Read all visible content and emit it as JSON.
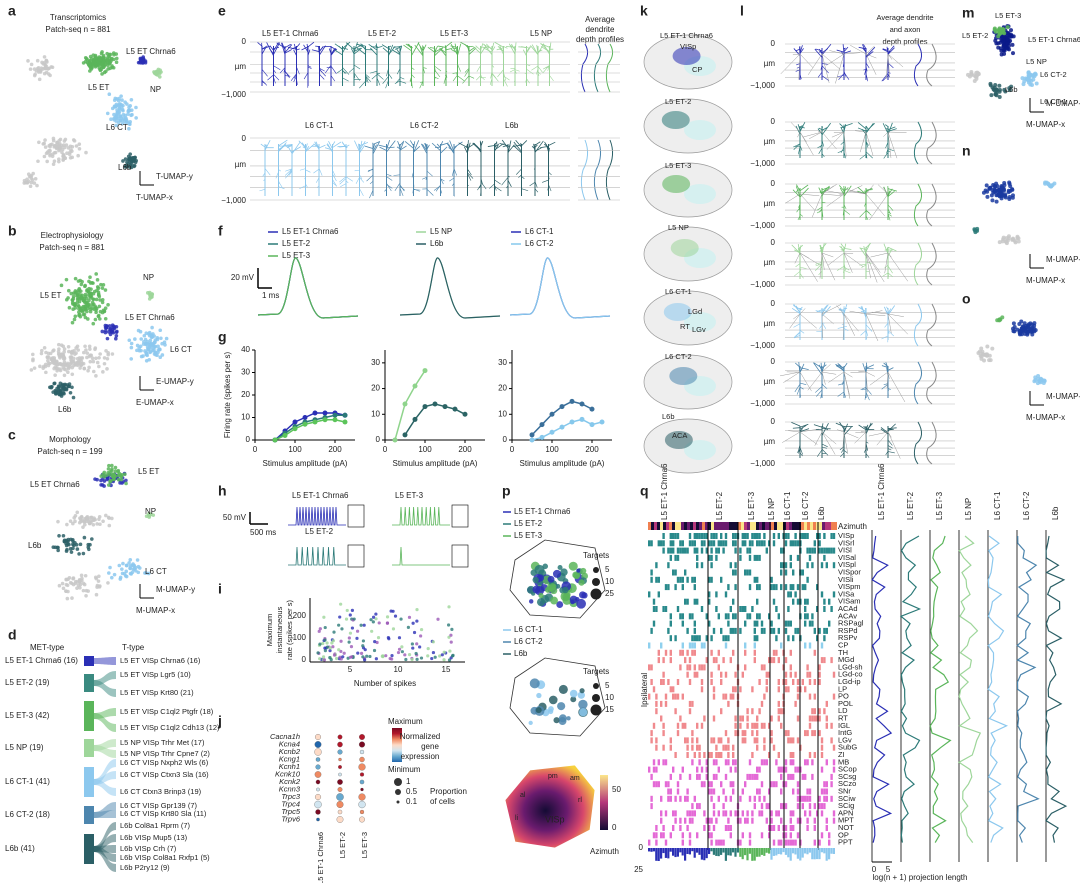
{
  "a": {
    "letter": "a",
    "title": "Transcriptomics",
    "subtitle": "Patch-seq n = 881",
    "labels": [
      "L5 ET",
      "L5 ET Chrna6",
      "NP",
      "L6 CT",
      "L6b"
    ],
    "axis": [
      "T-UMAP-y",
      "T-UMAP-x"
    ]
  },
  "b": {
    "letter": "b",
    "title": "Electrophysiology",
    "subtitle": "Patch-seq n = 881",
    "labels": [
      "NP",
      "L5 ET",
      "L5 ET Chrna6",
      "L6 CT",
      "L6b"
    ],
    "axis": [
      "E-UMAP-y",
      "E-UMAP-x"
    ]
  },
  "c": {
    "letter": "c",
    "title": "Morphology",
    "subtitle": "Patch-seq n = 199",
    "labels": [
      "L5 ET",
      "L5 ET Chrna6",
      "NP",
      "L6b",
      "L6 CT"
    ],
    "axis": [
      "M-UMAP-y",
      "M-UMAP-x"
    ]
  },
  "d": {
    "letter": "d",
    "met_header": "MET-type",
    "t_header": "T-type",
    "met_types": [
      "L5 ET-1 Chrna6 (16)",
      "L5 ET-2 (19)",
      "L5 ET-3 (42)",
      "L5 NP (19)",
      "L6 CT-1 (41)",
      "L6 CT-2 (18)",
      "L6b (41)"
    ],
    "t_types": [
      "L5 ET VISp Chrna6 (16)",
      "L5 ET VISp Lgr5 (10)",
      "L5 ET VISp Krt80 (21)",
      "L5 ET VISp C1ql2 Ptgfr (18)",
      "L5 ET VISp C1ql2 Cdh13 (12)",
      "L5 NP VISp Trhr Met (17)",
      "L5 NP VISp Trhr Cpne7 (2)",
      "L6 CT VISp Nxph2 Wls (6)",
      "L6 CT VISp Ctxn3 Sla (16)",
      "L6 CT Ctxn3 Brinp3 (19)",
      "L6 CT VISp Gpr139 (7)",
      "L6 CT VISp Krt80 Sla (11)",
      "L6b Col8a1 Rprm (7)",
      "L6b VISp Mup5 (13)",
      "L6b VISp Crh (7)",
      "L6b VISp Col8a1 Rxfp1 (5)",
      "L6b P2ry12 (9)"
    ]
  },
  "e": {
    "letter": "e",
    "row1": [
      "L5 ET-1 Chrna6",
      "L5 ET-2",
      "L5 ET-3",
      "L5 NP"
    ],
    "row2": [
      "L6 CT-1",
      "L6 CT-2",
      "L6b"
    ],
    "profile_title": [
      "Average",
      "dendrite",
      "depth profiles"
    ],
    "depth_top": "0",
    "depth_unit": "µm",
    "depth_bottom": "−1,000"
  },
  "f": {
    "letter": "f",
    "legend": [
      "L5 ET-1 Chrna6",
      "L5 ET-2",
      "L5 ET-3",
      "L5 NP",
      "L6b",
      "L6 CT-1",
      "L6 CT-2"
    ],
    "scale_v": "20 mV",
    "scale_t": "1 ms"
  },
  "g": {
    "letter": "g"
  },
  "chart_data": [
    {
      "type": "line",
      "ylabel": "Firing rate (spikes per s)",
      "xlabel": "Stimulus amplitude (pA)",
      "x": [
        50,
        75,
        100,
        125,
        150,
        175,
        200,
        225
      ],
      "xlim": [
        0,
        250
      ],
      "xticks": [
        0,
        100,
        200
      ],
      "ylim": [
        0,
        40
      ],
      "yticks": [
        0,
        10,
        20,
        30,
        40
      ],
      "series": [
        {
          "name": "L5 ET-1 Chrna6",
          "color": "#2a2fb5",
          "values": [
            0,
            4,
            8,
            10,
            12,
            12,
            12,
            11
          ]
        },
        {
          "name": "L5 ET-2",
          "color": "#2c7a78",
          "values": [
            0,
            3,
            6,
            8,
            9,
            10,
            11,
            11
          ]
        },
        {
          "name": "L5 ET-3",
          "color": "#5cc45a",
          "values": [
            0,
            2,
            5,
            7,
            8,
            9,
            9,
            8
          ]
        }
      ]
    },
    {
      "type": "line",
      "xlabel": "Stimulus amplitude (pA)",
      "x": [
        25,
        50,
        75,
        100,
        125,
        150,
        175,
        200
      ],
      "xlim": [
        0,
        250
      ],
      "xticks": [
        0,
        100,
        200
      ],
      "ylim": [
        0,
        35
      ],
      "yticks": [
        0,
        10,
        20,
        30
      ],
      "series": [
        {
          "name": "L5 NP",
          "color": "#8fd48c",
          "values": [
            0,
            14,
            21,
            27,
            null,
            null,
            null,
            null
          ]
        },
        {
          "name": "L6b",
          "color": "#2b6465",
          "values": [
            null,
            2,
            8,
            13,
            14,
            13,
            12,
            10
          ]
        }
      ]
    },
    {
      "type": "line",
      "xlabel": "Stimulus amplitude (pA)",
      "x": [
        50,
        75,
        100,
        125,
        150,
        175,
        200,
        225
      ],
      "xlim": [
        0,
        250
      ],
      "xticks": [
        0,
        100,
        200
      ],
      "ylim": [
        0,
        35
      ],
      "yticks": [
        0,
        10,
        20,
        30
      ],
      "series": [
        {
          "name": "L6 CT-1",
          "color": "#86c8ec",
          "values": [
            0,
            1,
            3,
            5,
            7,
            8,
            6,
            7
          ]
        },
        {
          "name": "L6 CT-2",
          "color": "#3a6f9a",
          "values": [
            2,
            6,
            10,
            13,
            15,
            14,
            12,
            null
          ]
        }
      ]
    }
  ],
  "h": {
    "letter": "h",
    "scale_v": "50 mV",
    "scale_t": "500 ms",
    "labels": [
      "L5 ET-1 Chrna6",
      "L5 ET-3",
      "L5 ET-2"
    ]
  },
  "i": {
    "letter": "i",
    "ylabel": [
      "Maximum",
      "instantaneous",
      "rate (spikes per s)"
    ],
    "xlabel": "Number of spikes",
    "yticks": [
      "0",
      "100",
      "200"
    ],
    "xticks": [
      "5",
      "10",
      "15"
    ]
  },
  "j": {
    "letter": "j",
    "genes": [
      "Cacna1h",
      "Kcna4",
      "Kcnb2",
      "Kcng1",
      "Kcnh1",
      "Kcnk10",
      "Kcnk2",
      "Kcnn3",
      "Trpc3",
      "Trpc4",
      "Trpc5",
      "Trpv6"
    ],
    "columns": [
      "L5 ET-1 Chrna6",
      "L5 ET-2",
      "L5 ET-3"
    ],
    "max": "Maximum",
    "min": "Minimum",
    "color_title": [
      "Normalized",
      "gene",
      "expression"
    ],
    "sizes": [
      "1",
      "0.5",
      "0.1"
    ],
    "size_title": [
      "Proportion",
      "of cells"
    ]
  },
  "k": {
    "letter": "k",
    "labels": [
      "L5 ET-1 Chrna6",
      "VISp",
      "CP",
      "L5 ET-2",
      "L5 ET-3",
      "L5 NP",
      "L6 CT-1",
      "LGd",
      "RT",
      "LGv",
      "L6 CT-2",
      "L6b",
      "ACA"
    ]
  },
  "l": {
    "letter": "l",
    "title": [
      "Average dendrite",
      "and axon",
      "depth profiles"
    ],
    "depth_top": "0",
    "depth_unit": "µm",
    "depth_bottom": "−1,000"
  },
  "m": {
    "letter": "m",
    "labels": [
      "L5 ET-3",
      "L5 ET-2",
      "L5 ET-1 Chrna6",
      "L5 NP",
      "L6 CT-2",
      "L6b",
      "L6 CT-1"
    ],
    "axis": [
      "M-UMAP-y",
      "M-UMAP-x"
    ]
  },
  "n": {
    "letter": "n",
    "axis": [
      "M-UMAP-y",
      "M-UMAP-x"
    ]
  },
  "o": {
    "letter": "o",
    "axis": [
      "M-UMAP-y",
      "M-UMAP-x"
    ]
  },
  "p": {
    "letter": "p",
    "legend1": [
      "L5 ET-1 Chrna6",
      "L5 ET-2",
      "L5 ET-3"
    ],
    "targets1": [
      "Targets",
      "5",
      "10",
      "25"
    ],
    "legend2": [
      "L6 CT-1",
      "L6 CT-2",
      "L6b"
    ],
    "targets2": [
      "Targets",
      "5",
      "10",
      "15"
    ],
    "areas": [
      "am",
      "pm",
      "al",
      "rl",
      "li",
      "VISp"
    ],
    "colorbar": [
      "50",
      "0"
    ],
    "colorbar_title": "Azimuth"
  },
  "q": {
    "letter": "q",
    "columns": [
      "L5 ET-1 Chrna6",
      "L5 ET-2",
      "L5 ET-3",
      "L5 NP",
      "L6 CT-1",
      "L6 CT-2",
      "L6b"
    ],
    "azimuth": "Azimuth",
    "side": "Ipsilateral",
    "regions": [
      "VISp",
      "VISrl",
      "VISl",
      "VISal",
      "VISpl",
      "VISpor",
      "VISli",
      "VISpm",
      "VISa",
      "VISam",
      "ACAd",
      "ACAv",
      "RSPagl",
      "RSPd",
      "RSPv",
      "CP",
      "TH",
      "MGd",
      "LGd-sh",
      "LGd-co",
      "LGd-ip",
      "LP",
      "PO",
      "POL",
      "LD",
      "RT",
      "IGL",
      "IntG",
      "LGv",
      "SubG",
      "ZI",
      "MB",
      "SCop",
      "SCsg",
      "SCzo",
      "SNr",
      "SCiw",
      "SCig",
      "APN",
      "MPT",
      "NOT",
      "OP",
      "PPT"
    ],
    "bar_ticks": [
      "0",
      "25"
    ],
    "x_ticks": [
      "0",
      "5"
    ],
    "xlabel": "log(n + 1) projection length"
  }
}
